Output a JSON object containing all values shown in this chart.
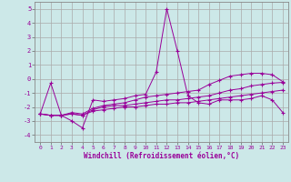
{
  "xlabel": "Windchill (Refroidissement éolien,°C)",
  "background_color": "#cce8e8",
  "grid_color": "#aaaaaa",
  "line_color": "#990099",
  "ylim": [
    -4.5,
    5.5
  ],
  "xlim": [
    -0.5,
    23.5
  ],
  "yticks": [
    -4,
    -3,
    -2,
    -1,
    0,
    1,
    2,
    3,
    4,
    5
  ],
  "xticks": [
    0,
    1,
    2,
    3,
    4,
    5,
    6,
    7,
    8,
    9,
    10,
    11,
    12,
    13,
    14,
    15,
    16,
    17,
    18,
    19,
    20,
    21,
    22,
    23
  ],
  "series": [
    [
      -2.5,
      -0.3,
      -2.6,
      -3.0,
      -3.5,
      -1.5,
      -1.6,
      -1.5,
      -1.4,
      -1.2,
      -1.1,
      0.5,
      5.0,
      2.0,
      -1.2,
      -1.7,
      -1.8,
      -1.5,
      -1.5,
      -1.5,
      -1.4,
      -1.2,
      -1.5,
      -2.4
    ],
    [
      -2.5,
      -2.6,
      -2.6,
      -2.4,
      -2.5,
      -2.1,
      -1.9,
      -1.8,
      -1.7,
      -1.5,
      -1.3,
      -1.2,
      -1.1,
      -1.0,
      -0.9,
      -0.8,
      -0.4,
      -0.1,
      0.2,
      0.3,
      0.4,
      0.4,
      0.3,
      -0.2
    ],
    [
      -2.5,
      -2.6,
      -2.6,
      -2.5,
      -2.6,
      -2.2,
      -2.0,
      -1.9,
      -1.9,
      -1.8,
      -1.7,
      -1.6,
      -1.5,
      -1.5,
      -1.4,
      -1.3,
      -1.2,
      -1.0,
      -0.8,
      -0.7,
      -0.5,
      -0.4,
      -0.3,
      -0.25
    ],
    [
      -2.5,
      -2.6,
      -2.6,
      -2.5,
      -2.6,
      -2.3,
      -2.2,
      -2.1,
      -2.0,
      -2.0,
      -1.9,
      -1.8,
      -1.8,
      -1.7,
      -1.7,
      -1.6,
      -1.5,
      -1.4,
      -1.3,
      -1.2,
      -1.1,
      -1.0,
      -0.9,
      -0.8
    ]
  ]
}
